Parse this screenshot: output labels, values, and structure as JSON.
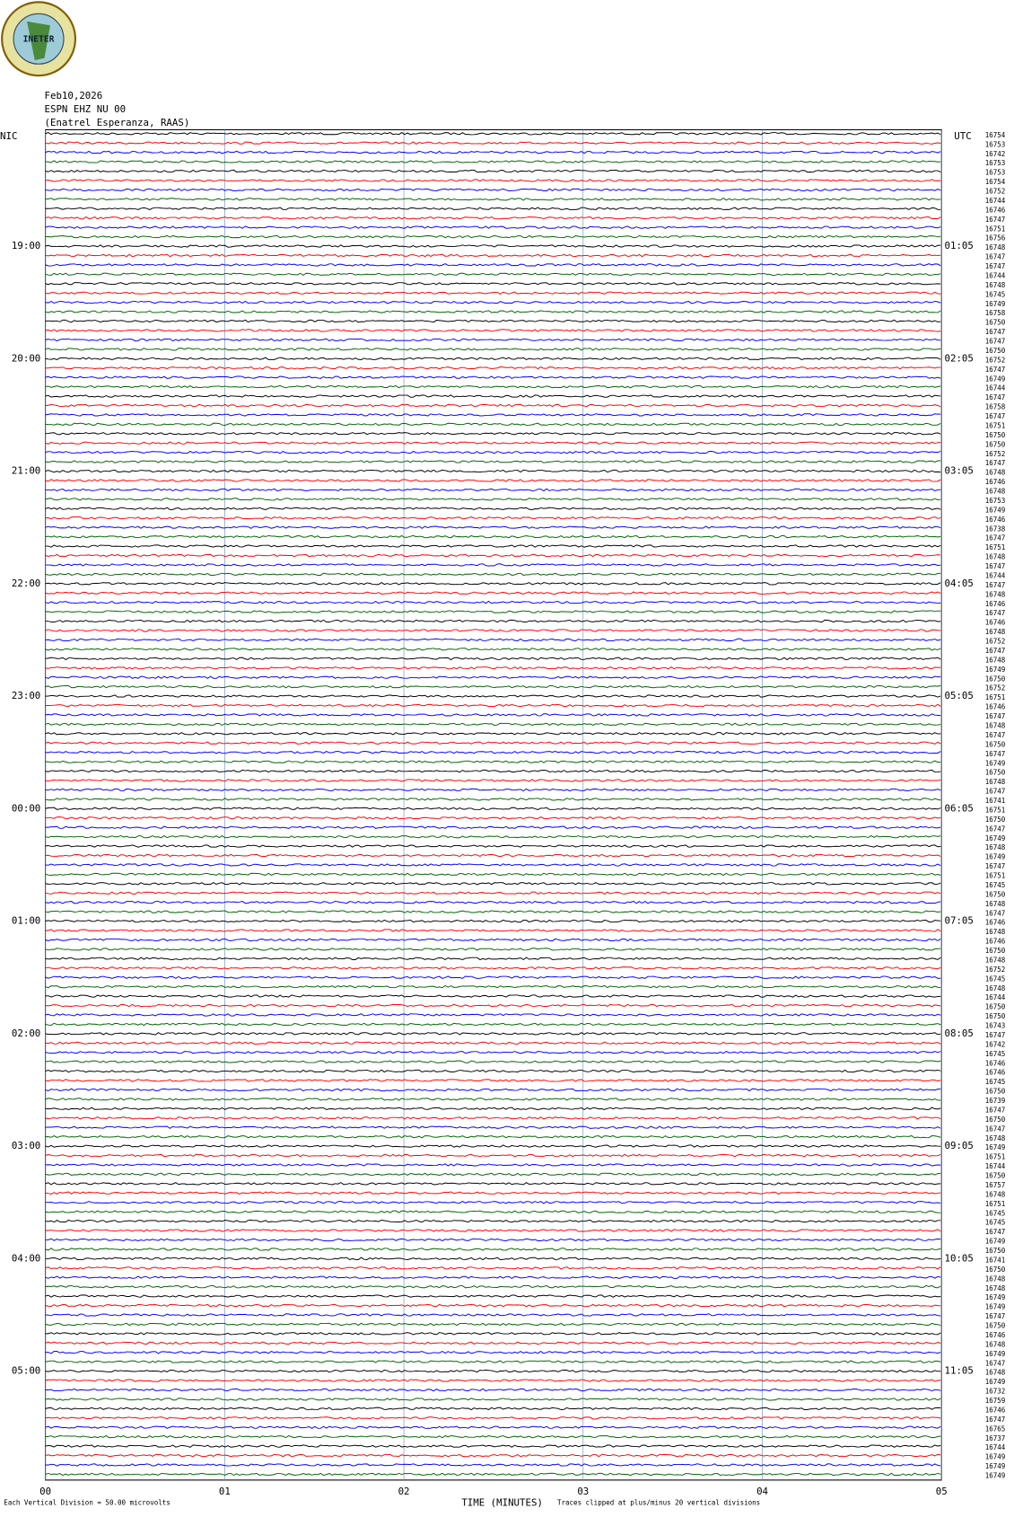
{
  "logo": "INETER",
  "chart_data": {
    "type": "helicorder",
    "date": "Feb10,2026",
    "station": "ESPN EHZ NU 00",
    "location": "(Enatrel Esperanza, RAAS)",
    "left_title": "NIC",
    "right_title": "UTC",
    "xlim": [
      0,
      5
    ],
    "xticks": [
      {
        "value": 0,
        "label": "00"
      },
      {
        "value": 1,
        "label": "01"
      },
      {
        "value": 2,
        "label": "02"
      },
      {
        "value": 3,
        "label": "03"
      },
      {
        "value": 4,
        "label": "04"
      },
      {
        "value": 5,
        "label": "05"
      }
    ],
    "x_label": "TIME (MINUTES)",
    "left_labels": [
      "19:00",
      "20:00",
      "21:00",
      "22:00",
      "23:00",
      "00:00",
      "01:00",
      "02:00",
      "03:00",
      "04:00",
      "05:00"
    ],
    "right_labels": [
      "01:05",
      "02:05",
      "03:05",
      "04:05",
      "05:05",
      "06:05",
      "07:05",
      "08:05",
      "09:05",
      "10:05",
      "11:05"
    ],
    "trace_colors": [
      "#000000",
      "#ff0000",
      "#0000ff",
      "#006400"
    ],
    "trace_labels": [
      "16754",
      "16753",
      "16742",
      "16753",
      "16753",
      "16754",
      "16752",
      "16744",
      "16746",
      "16747",
      "16751",
      "16756",
      "16748",
      "16747",
      "16747",
      "16744",
      "16748",
      "16745",
      "16749",
      "16758",
      "16750",
      "16747",
      "16747",
      "16750",
      "16752",
      "16747",
      "16749",
      "16744",
      "16747",
      "16758",
      "16747",
      "16751",
      "16750",
      "16750",
      "16752",
      "16747",
      "16748",
      "16746",
      "16748",
      "16753",
      "16749",
      "16746",
      "16738",
      "16747",
      "16751",
      "16748",
      "16747",
      "16744",
      "16747",
      "16748",
      "16746",
      "16747",
      "16746",
      "16748",
      "16752",
      "16747",
      "16748",
      "16749",
      "16750",
      "16752",
      "16751",
      "16746",
      "16747",
      "16748",
      "16747",
      "16750",
      "16747",
      "16749",
      "16750",
      "16748",
      "16747",
      "16741",
      "16751",
      "16750",
      "16747",
      "16749",
      "16748",
      "16749",
      "16747",
      "16751",
      "16745",
      "16750",
      "16748",
      "16747",
      "16746",
      "16748",
      "16746",
      "16750",
      "16748",
      "16752",
      "16745",
      "16748",
      "16744",
      "16750",
      "16750",
      "16743",
      "16747",
      "16742",
      "16745",
      "16746",
      "16746",
      "16745",
      "16750",
      "16739",
      "16747",
      "16750",
      "16747",
      "16748",
      "16749",
      "16751",
      "16744",
      "16750",
      "16757",
      "16748",
      "16751",
      "16745",
      "16745",
      "16747",
      "16749",
      "16750",
      "16741",
      "16750",
      "16748",
      "16748",
      "16749",
      "16749",
      "16747",
      "16750",
      "16746",
      "16748",
      "16749",
      "16747",
      "16748",
      "16749",
      "16732",
      "16759",
      "16746",
      "16747",
      "16765",
      "16737",
      "16744",
      "16749",
      "16749",
      "16749"
    ],
    "footer_left": "Each Vertical Division =    50.00 microvolts",
    "footer_right": "Traces clipped at plus/minus 20 vertical divisions"
  }
}
